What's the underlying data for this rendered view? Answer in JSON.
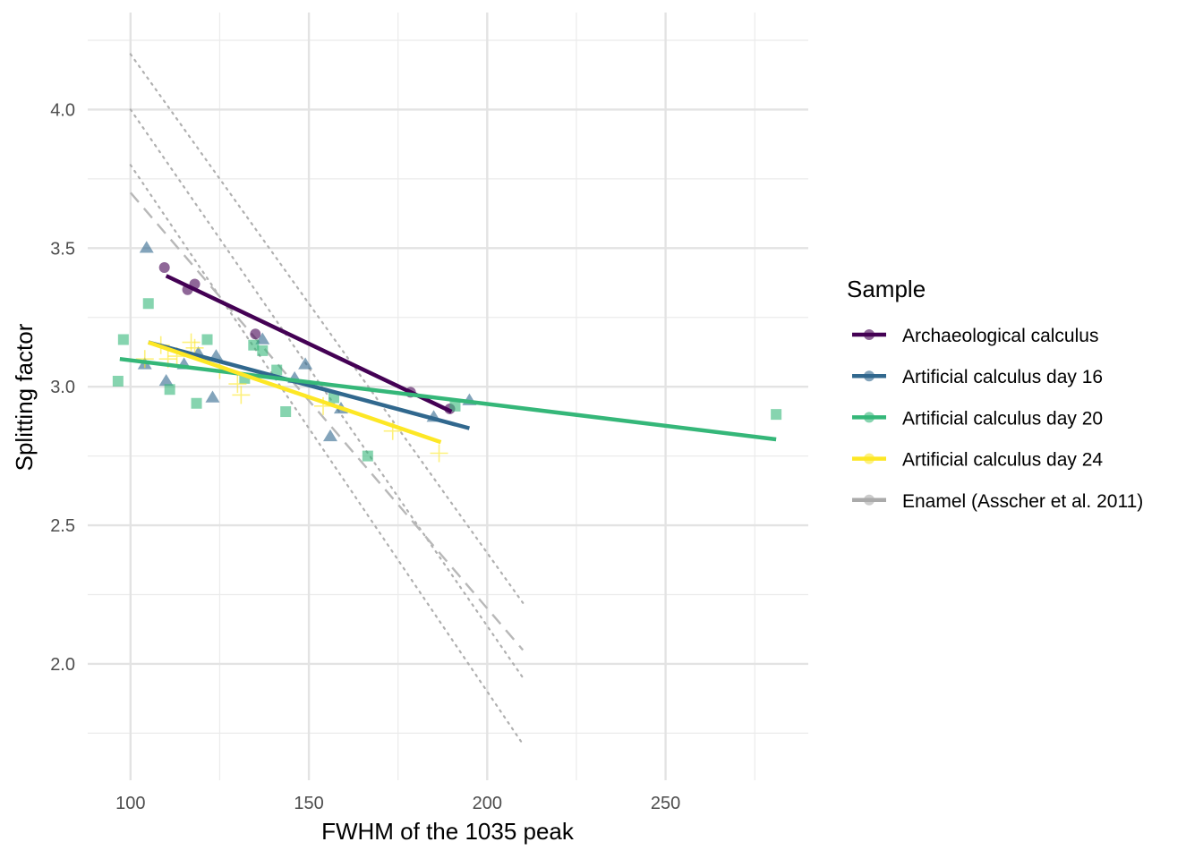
{
  "chart_data": {
    "type": "scatter",
    "title": "",
    "xlabel": "FWHM of the 1035 peak",
    "ylabel": "Splitting factor",
    "xlim": [
      88,
      290
    ],
    "ylim": [
      1.58,
      4.35
    ],
    "x_ticks": [
      100,
      150,
      200,
      250
    ],
    "y_ticks": [
      2.0,
      2.5,
      3.0,
      3.5,
      4.0
    ],
    "x_tick_labels": [
      "100",
      "150",
      "200",
      "250"
    ],
    "y_tick_labels": [
      "2.0",
      "2.5",
      "3.0",
      "3.5",
      "4.0"
    ],
    "grid": true,
    "legend": {
      "title": "Sample",
      "position": "right"
    },
    "series": [
      {
        "name": "Archaeological calculus",
        "color": "#440154",
        "marker": "circle",
        "points": [
          [
            109.5,
            3.43
          ],
          [
            116,
            3.35
          ],
          [
            118,
            3.37
          ],
          [
            135,
            3.19
          ],
          [
            178.5,
            2.98
          ],
          [
            189.5,
            2.92
          ]
        ],
        "fit": [
          [
            110,
            3.4
          ],
          [
            190,
            2.91
          ]
        ]
      },
      {
        "name": "Artificial calculus day 16",
        "color": "#31688e",
        "marker": "triangle",
        "points": [
          [
            104.5,
            3.5
          ],
          [
            104,
            3.08
          ],
          [
            110,
            3.02
          ],
          [
            115,
            3.08
          ],
          [
            119,
            3.12
          ],
          [
            123,
            2.96
          ],
          [
            124,
            3.11
          ],
          [
            137,
            3.17
          ],
          [
            146,
            3.03
          ],
          [
            149,
            3.08
          ],
          [
            156,
            2.82
          ],
          [
            159,
            2.92
          ],
          [
            185,
            2.89
          ],
          [
            195,
            2.95
          ]
        ],
        "fit": [
          [
            105,
            3.16
          ],
          [
            195,
            2.85
          ]
        ]
      },
      {
        "name": "Artificial calculus day 20",
        "color": "#35b779",
        "marker": "square",
        "points": [
          [
            96.5,
            3.02
          ],
          [
            98,
            3.17
          ],
          [
            105,
            3.3
          ],
          [
            111,
            2.99
          ],
          [
            118.5,
            2.94
          ],
          [
            121.5,
            3.17
          ],
          [
            132,
            3.03
          ],
          [
            134.5,
            3.15
          ],
          [
            137,
            3.13
          ],
          [
            141,
            3.06
          ],
          [
            143.5,
            2.91
          ],
          [
            157,
            2.96
          ],
          [
            166.5,
            2.75
          ],
          [
            191,
            2.93
          ],
          [
            281,
            2.9
          ]
        ],
        "fit": [
          [
            97,
            3.1
          ],
          [
            281,
            2.81
          ]
        ]
      },
      {
        "name": "Artificial calculus day 24",
        "color": "#fde725",
        "marker": "plus",
        "points": [
          [
            104,
            3.1
          ],
          [
            108.5,
            3.15
          ],
          [
            110.5,
            3.1
          ],
          [
            113,
            3.11
          ],
          [
            117,
            3.16
          ],
          [
            118,
            3.14
          ],
          [
            125,
            3.06
          ],
          [
            130,
            3.01
          ],
          [
            131,
            2.97
          ],
          [
            154,
            2.93
          ],
          [
            173.5,
            2.84
          ],
          [
            186.5,
            2.76
          ]
        ],
        "fit": [
          [
            105,
            3.16
          ],
          [
            187,
            2.8
          ]
        ]
      },
      {
        "name": "Enamel (Asscher et al. 2011)",
        "color": "#aaaaaa",
        "marker": "none",
        "fit": [
          [
            100,
            3.7
          ],
          [
            210,
            2.05
          ]
        ],
        "reference_lines": [
          [
            [
              100,
              4.2
            ],
            [
              210,
              2.22
            ]
          ],
          [
            [
              100,
              4.0
            ],
            [
              210,
              1.95
            ]
          ],
          [
            [
              100,
              3.8
            ],
            [
              210,
              1.71
            ]
          ]
        ]
      }
    ]
  }
}
